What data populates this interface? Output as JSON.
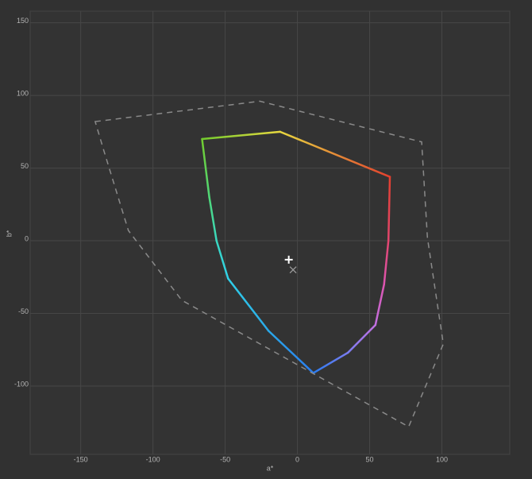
{
  "chart_data": {
    "type": "line",
    "x_label": "a*",
    "y_label": "b*",
    "xlim": [
      -185,
      147
    ],
    "ylim": [
      -147,
      158
    ],
    "xticks": [
      -150,
      -100,
      -50,
      0,
      50,
      100
    ],
    "yticks": [
      -100,
      -50,
      0,
      50,
      100,
      150
    ],
    "grid": true,
    "series": [
      {
        "x": [
          -66,
          -12,
          64,
          63,
          60,
          54,
          35,
          11,
          -20,
          -48,
          -56,
          -61
        ],
        "values": [
          70,
          75,
          44,
          0,
          -30,
          -58,
          -77,
          -91,
          -62,
          -26,
          0,
          30
        ],
        "colors": [
          "#72cc2e",
          "#e8d840",
          "#e2402e",
          "#e2456e",
          "#dd55b0",
          "#c070e0",
          "#7a7cf0",
          "#2a7cf0",
          "#2aa8e8",
          "#30d0e8",
          "#3ad8c0",
          "#50d878"
        ],
        "closed": true
      },
      {
        "x": [
          -140,
          -26,
          86,
          90,
          101,
          77,
          -80,
          -117,
          -134
        ],
        "values": [
          82,
          96,
          68,
          2,
          -71,
          -128,
          -41,
          7,
          62
        ],
        "color": "#8a8a8a",
        "dash": true,
        "closed": true
      },
      {
        "x": [
          -6
        ],
        "values": [
          -13
        ],
        "color": "#ffffff",
        "marker": "plus"
      },
      {
        "x": [
          -3
        ],
        "values": [
          -20
        ],
        "color": "#9a9a9a",
        "marker": "cross"
      }
    ]
  }
}
